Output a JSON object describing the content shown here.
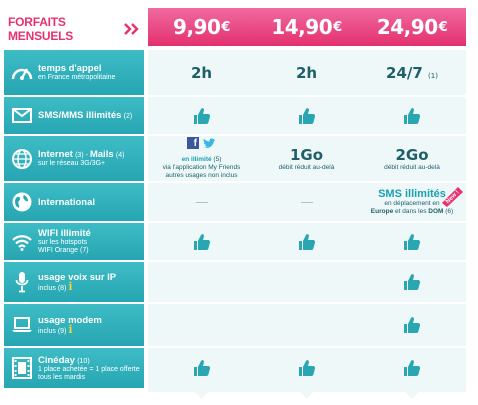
{
  "header": {
    "label": "FORFAITS MENSUELS",
    "plans": [
      {
        "price": "9,90",
        "currency": "€"
      },
      {
        "price": "14,90",
        "currency": "€"
      },
      {
        "price": "24,90",
        "currency": "€"
      }
    ]
  },
  "rows": [
    {
      "icon": "speedometer-icon",
      "title": "temps d'appel",
      "subtitle": "en France métropolitaine",
      "cells": [
        {
          "main": "2h"
        },
        {
          "main": "2h"
        },
        {
          "main": "24/7",
          "note": "(1)"
        }
      ]
    },
    {
      "icon": "envelope-icon",
      "title": "SMS/MMS illimités",
      "title_note": "(2)",
      "cells": [
        "thumbs-up-icon",
        "thumbs-up-icon",
        "thumbs-up-icon"
      ]
    },
    {
      "icon": "globe-icon",
      "title_a": "Internet",
      "title_a_note": "(3) - ",
      "title_b": "Mails",
      "title_b_note": "(4)",
      "subtitle": "sur le réseau 3G/3G+",
      "cell1": {
        "line1_strong": "en illimité",
        "line1_note": "(5)",
        "line2": "via l'application My Friends",
        "line3": "autres usages non inclus"
      },
      "cell2": {
        "main": "1Go",
        "sub": "débit réduit au-delà"
      },
      "cell3": {
        "main": "2Go",
        "sub": "débit réduit au-delà"
      }
    },
    {
      "icon": "earth-icon",
      "title": "International",
      "cell3": {
        "main": "SMS illimités",
        "line2": "en déplacement en",
        "line3_a": "Europe",
        "line3_b": " et dans les ",
        "line3_c": "DOM",
        "line3_note": " (6)",
        "badge": "New !"
      }
    },
    {
      "icon": "wifi-icon",
      "title": "WIFI illimité",
      "subtitle": "sur les hotspots",
      "subtitle2": "WIFI Orange",
      "subtitle2_note": "(7)",
      "cells": [
        "thumbs-up-icon",
        "thumbs-up-icon",
        "thumbs-up-icon"
      ]
    },
    {
      "icon": "microphone-icon",
      "title": "usage voix sur IP",
      "subtitle": "inclus (8)",
      "info": "i",
      "cells": [
        "empty",
        "empty",
        "thumbs-up-icon"
      ]
    },
    {
      "icon": "laptop-icon",
      "title": "usage modem",
      "subtitle": "inclus (9)",
      "info": "i",
      "cells": [
        "empty",
        "empty",
        "thumbs-up-icon"
      ]
    },
    {
      "icon": "film-icon",
      "title": "Cinéday",
      "title_note": "(10)",
      "subtitle": "1 place achetée = 1 place offerte",
      "subtitle2": "tous les mardis",
      "cells": [
        "thumbs-up-icon",
        "thumbs-up-icon",
        "thumbs-up-icon"
      ]
    }
  ],
  "colors": {
    "pink": "#e8316f",
    "teal": "#2fb0bb",
    "cell_bg": "#eef8f9",
    "text": "#1e5f68"
  }
}
